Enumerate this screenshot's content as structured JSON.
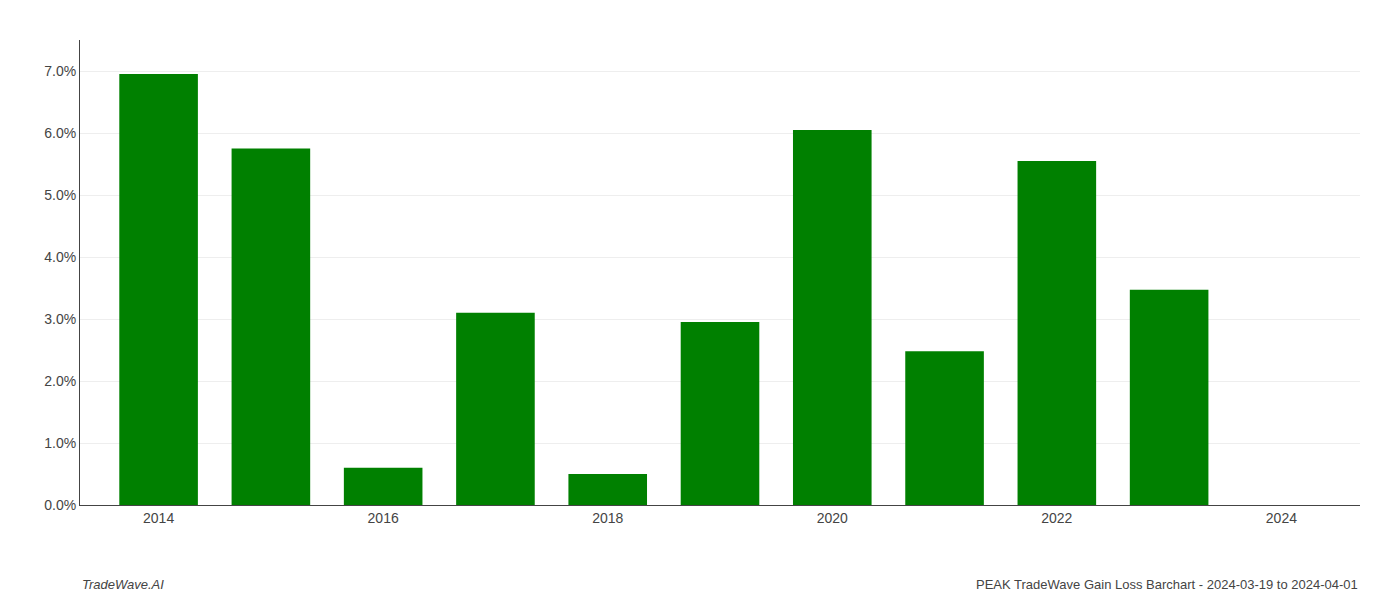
{
  "chart_data": {
    "type": "bar",
    "x": [
      2014,
      2015,
      2016,
      2017,
      2018,
      2019,
      2020,
      2021,
      2022,
      2023,
      2024
    ],
    "values": [
      0.0695,
      0.0575,
      0.006,
      0.031,
      0.005,
      0.0295,
      0.0605,
      0.0248,
      0.0555,
      0.0347,
      0.0
    ],
    "color": "#008000",
    "xlim": [
      2013.3,
      2024.7
    ],
    "xticks": [
      2014,
      2016,
      2018,
      2020,
      2022,
      2024
    ],
    "ylim": [
      0,
      0.075
    ],
    "yticks": [
      {
        "value": 0.0,
        "label": "0.0%"
      },
      {
        "value": 0.01,
        "label": "1.0%"
      },
      {
        "value": 0.02,
        "label": "2.0%"
      },
      {
        "value": 0.03,
        "label": "3.0%"
      },
      {
        "value": 0.04,
        "label": "4.0%"
      },
      {
        "value": 0.05,
        "label": "5.0%"
      },
      {
        "value": 0.06,
        "label": "6.0%"
      },
      {
        "value": 0.07,
        "label": "7.0%"
      }
    ],
    "grid": true,
    "annotations": [
      "TradeWave.AI",
      "PEAK TradeWave Gain Loss Barchart - 2024-03-19 to 2024-04-01"
    ]
  }
}
